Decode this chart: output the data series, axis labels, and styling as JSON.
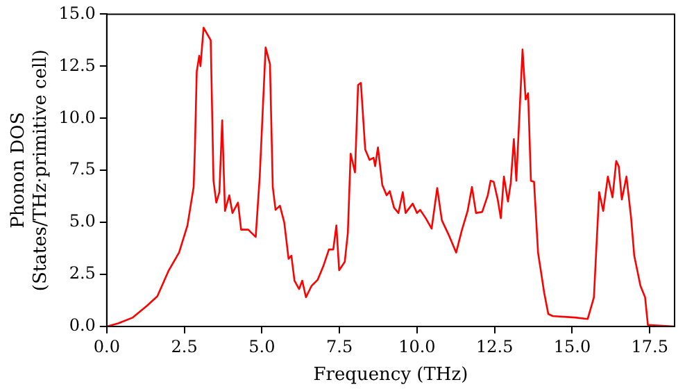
{
  "chart_data": {
    "type": "line",
    "xlabel": "Frequency (THz)",
    "ylabel": "Phonon DOS\n(States/THz·primitive cell)",
    "x": [
      0,
      0.37,
      0.84,
      1.3,
      1.63,
      2.0,
      2.33,
      2.6,
      2.8,
      2.84,
      2.9,
      2.98,
      3.02,
      3.12,
      3.35,
      3.44,
      3.53,
      3.63,
      3.72,
      3.81,
      3.95,
      4.05,
      4.23,
      4.33,
      4.56,
      4.8,
      4.93,
      5.12,
      5.26,
      5.35,
      5.44,
      5.58,
      5.72,
      5.86,
      5.95,
      6.05,
      6.2,
      6.3,
      6.42,
      6.6,
      6.8,
      6.98,
      7.16,
      7.3,
      7.4,
      7.49,
      7.67,
      7.77,
      7.86,
      8.0,
      8.1,
      8.19,
      8.33,
      8.47,
      8.6,
      8.65,
      8.74,
      8.88,
      9.02,
      9.12,
      9.26,
      9.4,
      9.54,
      9.63,
      9.86,
      10.0,
      10.1,
      10.28,
      10.47,
      10.65,
      10.8,
      11.02,
      11.26,
      11.44,
      11.63,
      11.77,
      11.9,
      12.1,
      12.28,
      12.37,
      12.47,
      12.6,
      12.7,
      12.8,
      12.93,
      13.02,
      13.12,
      13.2,
      13.4,
      13.5,
      13.58,
      13.67,
      13.77,
      13.9,
      14.1,
      14.23,
      14.37,
      15.1,
      15.5,
      15.7,
      15.87,
      16.0,
      16.15,
      16.3,
      16.42,
      16.5,
      16.6,
      16.75,
      16.9,
      17.0,
      17.2,
      17.35,
      17.44,
      18.3
    ],
    "series": [
      {
        "color": "#ff0000",
        "values": [
          0,
          0.15,
          0.43,
          1.0,
          1.45,
          2.7,
          3.55,
          4.85,
          6.7,
          8.5,
          12.25,
          13.0,
          12.5,
          14.35,
          13.75,
          7.0,
          5.95,
          6.45,
          9.9,
          5.55,
          6.3,
          5.45,
          5.95,
          4.65,
          4.65,
          4.3,
          7.2,
          13.4,
          12.6,
          6.7,
          5.6,
          5.8,
          5.0,
          3.25,
          3.4,
          2.2,
          1.8,
          2.2,
          1.4,
          1.95,
          2.25,
          2.9,
          3.7,
          3.7,
          4.85,
          2.7,
          3.1,
          4.5,
          8.3,
          7.4,
          11.6,
          11.7,
          8.5,
          8.0,
          8.1,
          7.7,
          8.6,
          6.8,
          6.3,
          6.5,
          5.7,
          5.45,
          6.45,
          5.45,
          5.9,
          5.45,
          5.6,
          5.2,
          4.7,
          6.65,
          5.1,
          4.4,
          3.55,
          4.6,
          5.55,
          6.7,
          5.45,
          5.5,
          6.3,
          7.0,
          6.95,
          6.1,
          5.2,
          7.2,
          6.0,
          6.9,
          9.0,
          7.0,
          13.3,
          10.9,
          11.2,
          7.0,
          6.95,
          3.55,
          1.6,
          0.6,
          0.5,
          0.43,
          0.36,
          1.4,
          6.45,
          5.55,
          7.2,
          6.2,
          7.95,
          7.7,
          6.1,
          7.2,
          5.2,
          3.4,
          1.95,
          1.4,
          0.07,
          0.0
        ]
      }
    ],
    "xlim": [
      0,
      18.3
    ],
    "xticks": [
      {
        "value": 0,
        "label": "0.0"
      },
      2.5,
      {
        "value": 5,
        "label": "5.0"
      },
      7.5,
      {
        "value": 10,
        "label": "10.0"
      },
      12.5,
      {
        "value": 15,
        "label": "15.0"
      },
      17.5
    ],
    "ylim": [
      0,
      15
    ],
    "yticks": [
      {
        "value": 0,
        "label": "0.0"
      },
      2.5,
      {
        "value": 5,
        "label": "5.0"
      },
      7.5,
      {
        "value": 10,
        "label": "10.0"
      },
      12.5,
      {
        "value": 15,
        "label": "15.0"
      }
    ],
    "grid": false,
    "legend": false,
    "marker": "none",
    "line_style": "solid"
  }
}
